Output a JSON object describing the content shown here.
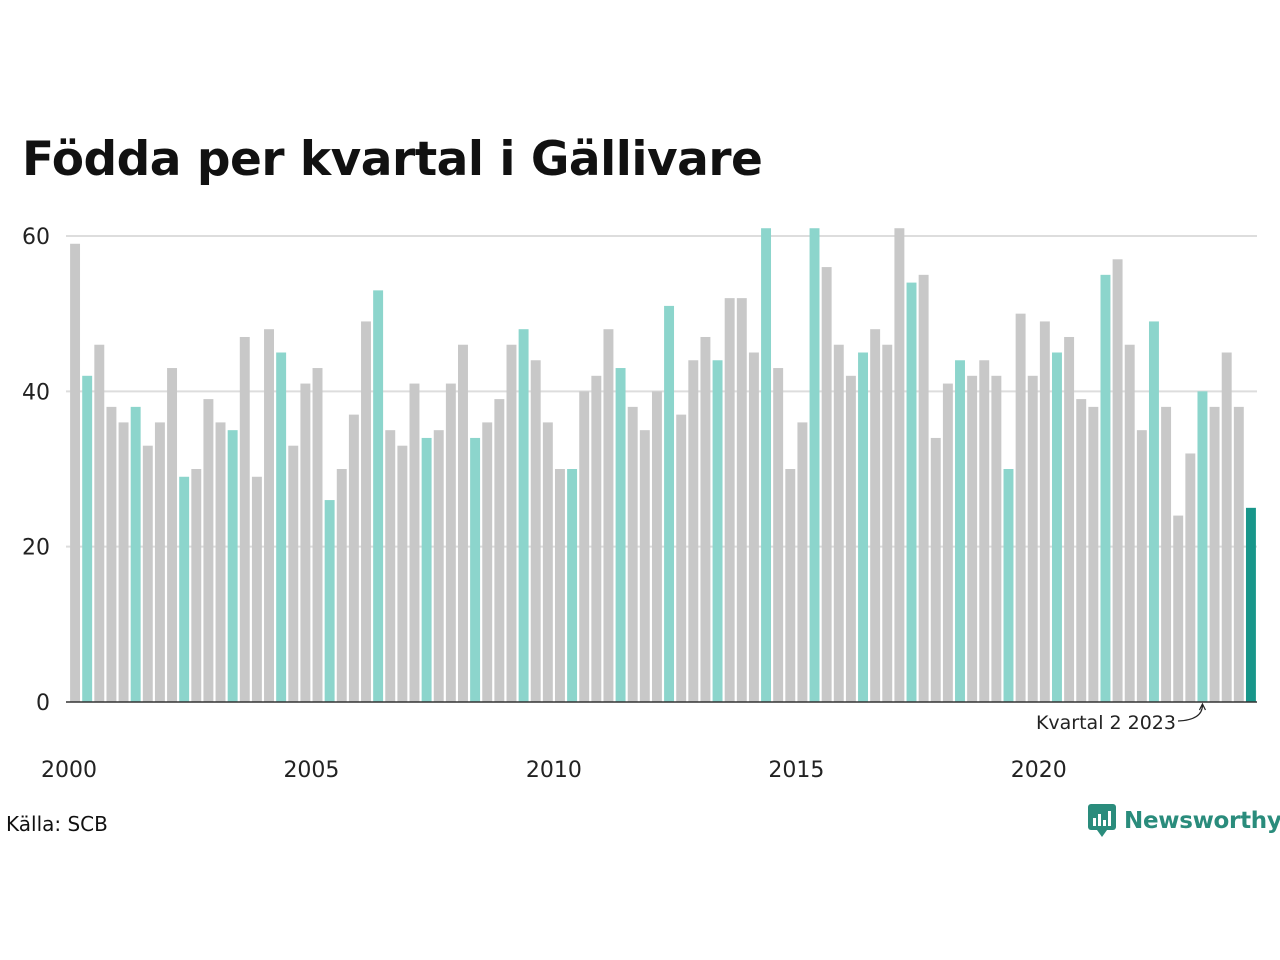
{
  "title": "Födda per kvartal i Gällivare",
  "source": "Källa: SCB",
  "brand": "Newsworthy",
  "colors": {
    "bar_default": "#c8c8c8",
    "bar_highlight": "#8cd5cc",
    "bar_latest": "#18968a",
    "gridline": "#dddddd",
    "axis": "#333333",
    "brand": "#2a8c7c"
  },
  "chart_data": {
    "type": "bar",
    "title": "Födda per kvartal i Gällivare",
    "xlabel": "",
    "ylabel": "",
    "ylim": [
      0,
      60
    ],
    "yticks": [
      0,
      20,
      40,
      60
    ],
    "xticks": [
      "2000",
      "2005",
      "2010",
      "2015",
      "2020"
    ],
    "grid": true,
    "first_period": "2000 kvartal 1",
    "last_period": "2024 kvartal 2",
    "values": [
      59,
      42,
      46,
      38,
      36,
      38,
      33,
      36,
      43,
      29,
      30,
      39,
      36,
      35,
      47,
      29,
      48,
      45,
      33,
      41,
      43,
      26,
      30,
      37,
      49,
      53,
      35,
      33,
      41,
      34,
      35,
      41,
      46,
      34,
      36,
      39,
      46,
      48,
      44,
      36,
      30,
      30,
      40,
      42,
      48,
      43,
      38,
      35,
      40,
      51,
      37,
      44,
      47,
      44,
      52,
      52,
      45,
      61,
      43,
      30,
      36,
      61,
      56,
      46,
      42,
      45,
      48,
      46,
      61,
      54,
      55,
      34,
      41,
      44,
      42,
      44,
      42,
      30,
      50,
      42,
      49,
      45,
      47,
      39,
      38,
      55,
      57,
      46,
      35,
      49,
      38,
      24,
      32,
      40,
      38,
      45,
      38,
      25
    ],
    "highlight_indices": [
      1,
      5,
      9,
      13,
      17,
      21,
      25,
      29,
      33,
      37,
      41,
      45,
      49,
      53,
      57,
      61,
      65,
      69,
      73,
      77,
      81,
      85,
      89,
      93
    ],
    "latest_index": 97,
    "annotation": {
      "text": "Kvartal 2 2023",
      "target_index": 93
    }
  }
}
